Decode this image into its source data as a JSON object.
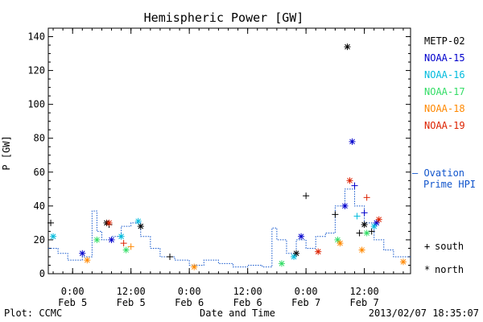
{
  "chart_data": {
    "type": "scatter",
    "title": "Hemispheric Power [GW]",
    "xlabel": "Date and Time",
    "ylabel": "P [GW]",
    "ylim": [
      0,
      145
    ],
    "xlim": [
      "2013-02-04 19:00",
      "2013-02-07 21:30"
    ],
    "y_ticks": [
      0,
      20,
      40,
      60,
      80,
      100,
      120,
      140
    ],
    "x_ticks": [
      {
        "t": "2013-02-05 00:00",
        "line1": "0:00",
        "line2": "Feb 5"
      },
      {
        "t": "2013-02-05 12:00",
        "line1": "12:00",
        "line2": "Feb 5"
      },
      {
        "t": "2013-02-06 00:00",
        "line1": "0:00",
        "line2": "Feb 6"
      },
      {
        "t": "2013-02-06 12:00",
        "line1": "12:00",
        "line2": "Feb 6"
      },
      {
        "t": "2013-02-07 00:00",
        "line1": "0:00",
        "line2": "Feb 7"
      },
      {
        "t": "2013-02-07 12:00",
        "line1": "12:00",
        "line2": "Feb 7"
      }
    ],
    "grid": false,
    "legend_position": "right",
    "series": [
      {
        "name": "METP-02",
        "color": "#000000",
        "points": [
          {
            "t": "2013-02-04 19:30",
            "y": 30,
            "m": "plus"
          },
          {
            "t": "2013-02-05 07:00",
            "y": 30,
            "m": "star"
          },
          {
            "t": "2013-02-05 07:30",
            "y": 29,
            "m": "plus"
          },
          {
            "t": "2013-02-05 14:00",
            "y": 28,
            "m": "star"
          },
          {
            "t": "2013-02-07 00:00",
            "y": 46,
            "m": "plus"
          },
          {
            "t": "2013-02-07 08:30",
            "y": 134,
            "m": "star"
          },
          {
            "t": "2013-02-07 12:00",
            "y": 29,
            "m": "star"
          },
          {
            "t": "2013-02-07 13:30",
            "y": 25,
            "m": "plus"
          },
          {
            "t": "2013-02-07 11:00",
            "y": 24,
            "m": "plus"
          },
          {
            "t": "2013-02-07 06:00",
            "y": 35,
            "m": "plus"
          },
          {
            "t": "2013-02-06 22:00",
            "y": 12,
            "m": "star"
          },
          {
            "t": "2013-02-05 20:00",
            "y": 10,
            "m": "plus"
          }
        ]
      },
      {
        "name": "NOAA-15",
        "color": "#0000cc",
        "points": [
          {
            "t": "2013-02-07 09:30",
            "y": 78,
            "m": "star"
          },
          {
            "t": "2013-02-07 10:00",
            "y": 52,
            "m": "plus"
          },
          {
            "t": "2013-02-07 08:00",
            "y": 40,
            "m": "star"
          },
          {
            "t": "2013-02-05 08:00",
            "y": 20,
            "m": "star"
          },
          {
            "t": "2013-02-05 02:00",
            "y": 12,
            "m": "star"
          },
          {
            "t": "2013-02-06 23:00",
            "y": 22,
            "m": "star"
          },
          {
            "t": "2013-02-07 12:00",
            "y": 36,
            "m": "plus"
          },
          {
            "t": "2013-02-07 14:30",
            "y": 30,
            "m": "star"
          }
        ]
      },
      {
        "name": "NOAA-16",
        "color": "#00bbdd",
        "points": [
          {
            "t": "2013-02-05 13:30",
            "y": 31,
            "m": "star"
          },
          {
            "t": "2013-02-04 20:00",
            "y": 22,
            "m": "star"
          },
          {
            "t": "2013-02-07 10:30",
            "y": 34,
            "m": "plus"
          },
          {
            "t": "2013-02-07 14:00",
            "y": 28,
            "m": "star"
          },
          {
            "t": "2013-02-05 10:00",
            "y": 22,
            "m": "star"
          },
          {
            "t": "2013-02-06 21:30",
            "y": 10,
            "m": "star"
          }
        ]
      },
      {
        "name": "NOAA-17",
        "color": "#33dd66",
        "points": [
          {
            "t": "2013-02-05 05:00",
            "y": 20,
            "m": "star"
          },
          {
            "t": "2013-02-07 12:30",
            "y": 24,
            "m": "star"
          },
          {
            "t": "2013-02-07 06:30",
            "y": 20,
            "m": "star"
          },
          {
            "t": "2013-02-05 11:00",
            "y": 14,
            "m": "star"
          },
          {
            "t": "2013-02-06 19:00",
            "y": 6,
            "m": "star"
          }
        ]
      },
      {
        "name": "NOAA-18",
        "color": "#ff8800",
        "points": [
          {
            "t": "2013-02-05 12:00",
            "y": 16,
            "m": "plus"
          },
          {
            "t": "2013-02-07 07:00",
            "y": 18,
            "m": "star"
          },
          {
            "t": "2013-02-07 11:30",
            "y": 14,
            "m": "star"
          },
          {
            "t": "2013-02-05 03:00",
            "y": 8,
            "m": "star"
          },
          {
            "t": "2013-02-06 01:00",
            "y": 4,
            "m": "star"
          },
          {
            "t": "2013-02-07 20:00",
            "y": 7,
            "m": "star"
          }
        ]
      },
      {
        "name": "NOAA-19",
        "color": "#dd2200",
        "points": [
          {
            "t": "2013-02-07 09:00",
            "y": 55,
            "m": "star"
          },
          {
            "t": "2013-02-07 12:30",
            "y": 45,
            "m": "plus"
          },
          {
            "t": "2013-02-05 07:30",
            "y": 30,
            "m": "star"
          },
          {
            "t": "2013-02-05 10:30",
            "y": 18,
            "m": "plus"
          },
          {
            "t": "2013-02-07 15:00",
            "y": 32,
            "m": "star"
          },
          {
            "t": "2013-02-07 02:30",
            "y": 13,
            "m": "star"
          }
        ]
      }
    ],
    "ovation": {
      "name_line1": "— Ovation",
      "name_line2": "Prime HPI",
      "color": "#1155cc",
      "step_points": [
        {
          "t": "2013-02-04 19:00",
          "y": 15
        },
        {
          "t": "2013-02-04 21:00",
          "y": 12
        },
        {
          "t": "2013-02-04 23:00",
          "y": 8
        },
        {
          "t": "2013-02-05 02:00",
          "y": 10
        },
        {
          "t": "2013-02-05 04:00",
          "y": 37
        },
        {
          "t": "2013-02-05 05:00",
          "y": 25
        },
        {
          "t": "2013-02-05 06:00",
          "y": 20
        },
        {
          "t": "2013-02-05 08:00",
          "y": 22
        },
        {
          "t": "2013-02-05 10:00",
          "y": 28
        },
        {
          "t": "2013-02-05 12:00",
          "y": 30
        },
        {
          "t": "2013-02-05 14:00",
          "y": 22
        },
        {
          "t": "2013-02-05 16:00",
          "y": 15
        },
        {
          "t": "2013-02-05 18:00",
          "y": 10
        },
        {
          "t": "2013-02-05 21:00",
          "y": 8
        },
        {
          "t": "2013-02-06 00:00",
          "y": 5
        },
        {
          "t": "2013-02-06 03:00",
          "y": 8
        },
        {
          "t": "2013-02-06 06:00",
          "y": 6
        },
        {
          "t": "2013-02-06 09:00",
          "y": 4
        },
        {
          "t": "2013-02-06 12:00",
          "y": 5
        },
        {
          "t": "2013-02-06 15:00",
          "y": 4
        },
        {
          "t": "2013-02-06 17:00",
          "y": 27
        },
        {
          "t": "2013-02-06 18:00",
          "y": 20
        },
        {
          "t": "2013-02-06 20:00",
          "y": 12
        },
        {
          "t": "2013-02-06 22:00",
          "y": 20
        },
        {
          "t": "2013-02-07 00:00",
          "y": 15
        },
        {
          "t": "2013-02-07 02:00",
          "y": 22
        },
        {
          "t": "2013-02-07 04:00",
          "y": 24
        },
        {
          "t": "2013-02-07 06:00",
          "y": 40
        },
        {
          "t": "2013-02-07 08:00",
          "y": 50
        },
        {
          "t": "2013-02-07 10:00",
          "y": 40
        },
        {
          "t": "2013-02-07 12:00",
          "y": 30
        },
        {
          "t": "2013-02-07 14:00",
          "y": 20
        },
        {
          "t": "2013-02-07 16:00",
          "y": 14
        },
        {
          "t": "2013-02-07 18:00",
          "y": 10
        },
        {
          "t": "2013-02-07 21:30",
          "y": 10
        }
      ]
    },
    "marker_legend": [
      {
        "symbol": "+",
        "label": "south"
      },
      {
        "symbol": "*",
        "label": "north"
      }
    ]
  },
  "footer": {
    "left": "Plot: CCMC",
    "right": "2013/02/07 18:35:07"
  }
}
